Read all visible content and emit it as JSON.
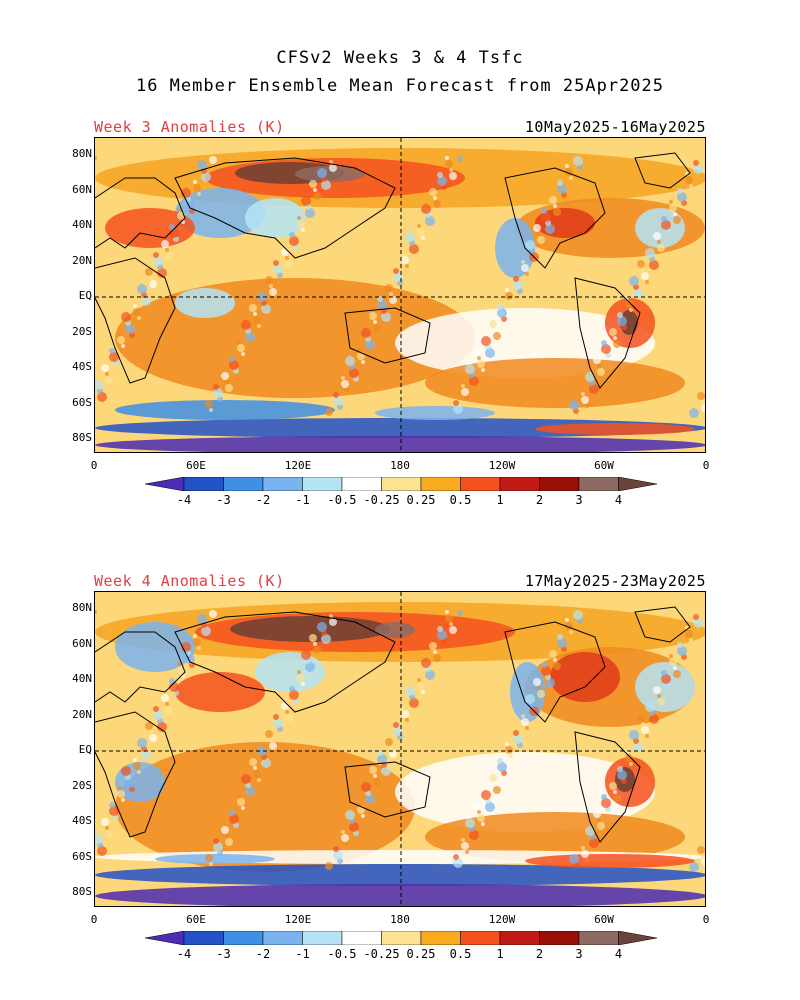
{
  "title_line1": "CFSv2 Weeks 3 & 4 Tsfc",
  "title_line2": "16 Member Ensemble Mean Forecast from 25Apr2025",
  "panels": [
    {
      "label": "Week 3 Anomalies (K)",
      "dates": "10May2025-16May2025"
    },
    {
      "label": "Week 4 Anomalies (K)",
      "dates": "17May2025-23May2025"
    }
  ],
  "y_ticks": [
    "80N",
    "60N",
    "40N",
    "20N",
    "EQ",
    "20S",
    "40S",
    "60S",
    "80S"
  ],
  "x_ticks": [
    "0",
    "60E",
    "120E",
    "180",
    "120W",
    "60W",
    "0"
  ],
  "colorbar": {
    "labels": [
      "-4",
      "-3",
      "-2",
      "-1",
      "-0.5",
      "-0.25",
      "0.25",
      "0.5",
      "1",
      "2",
      "3",
      "4"
    ],
    "colors": [
      "#4b2cb4",
      "#2351c8",
      "#3f8fe6",
      "#7ab4ef",
      "#b4e4f6",
      "#ffffff",
      "#fde292",
      "#f8ab1e",
      "#f4511e",
      "#c01a14",
      "#9b1006",
      "#8d6b62",
      "#6a433a"
    ]
  },
  "legend_colors": {
    "positive": "#f08a1e",
    "strong_positive": "#e03a1a",
    "max_positive": "#6b4034",
    "negative": "#7ab4ef",
    "strong_negative": "#2351c8",
    "max_negative": "#4b2cb4",
    "neutral": "#ffffff",
    "label_red": "#e04040"
  }
}
